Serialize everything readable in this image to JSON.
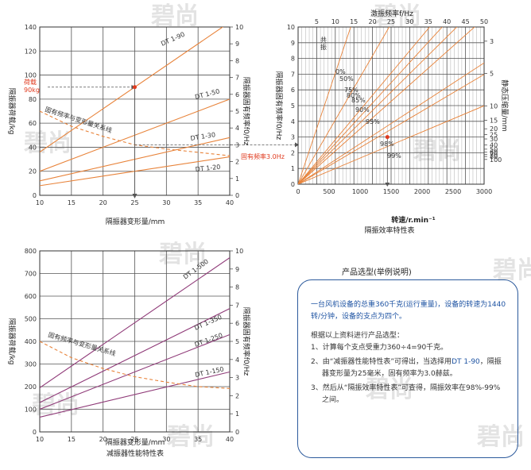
{
  "chart_data": [
    {
      "type": "line",
      "title": "",
      "xlabel": "隔振器变形量/mm",
      "ylabel": "隔振器荷载/kg",
      "y2label": "隔振器固有频率f0/Hz",
      "xlim": [
        10,
        40
      ],
      "ylim": [
        0,
        140
      ],
      "y2lim": [
        0,
        10
      ],
      "x_ticks": [
        "10",
        "15",
        "20",
        "25",
        "30",
        "35",
        "40"
      ],
      "y_ticks": [
        "0",
        "20",
        "40",
        "60",
        "80",
        "100",
        "120",
        "140"
      ],
      "y2_ticks": [
        "0",
        "1",
        "2",
        "3",
        "4",
        "5",
        "6",
        "7",
        "8",
        "9",
        "10"
      ],
      "series": [
        {
          "name": "DT 1-90",
          "x": [
            10,
            40
          ],
          "y": [
            36,
            144
          ]
        },
        {
          "name": "DT 1-50",
          "x": [
            10,
            40
          ],
          "y": [
            20,
            80
          ]
        },
        {
          "name": "DT 1-30",
          "x": [
            10,
            40
          ],
          "y": [
            12,
            48
          ]
        },
        {
          "name": "DT 1-20",
          "x": [
            10,
            40
          ],
          "y": [
            8,
            32
          ]
        }
      ],
      "freq_curve": {
        "name": "固有频率与变形量关系线",
        "x": [
          10,
          15,
          20,
          25,
          30,
          35,
          40
        ],
        "y2": [
          5.0,
          4.1,
          3.5,
          3.0,
          2.75,
          2.55,
          2.35
        ]
      },
      "annotations": {
        "load_label_1": "荷载",
        "load_label_2": "90kg",
        "freq_label": "固有频率3.0Hz"
      }
    },
    {
      "type": "line",
      "title": "",
      "x_top_label": "激振频率f/Hz",
      "xlabel": "转速/r.min⁻¹",
      "caption": "隔振效率特性表",
      "ylabel": "隔振器固有频率f0/Hz",
      "y2label": "静态压缩量/mm",
      "xlim": [
        0,
        3000
      ],
      "ylim": [
        0,
        10
      ],
      "x_ticks": [
        "0",
        "500",
        "1000",
        "1500",
        "2000",
        "2500",
        "3000"
      ],
      "x_top_ticks": [
        "5",
        "10",
        "15",
        "20",
        "25",
        "30",
        "35",
        "40",
        "45",
        "50"
      ],
      "y_ticks": [
        "0",
        "1",
        "2",
        "3",
        "4",
        "5",
        "6",
        "7",
        "8",
        "9",
        "10"
      ],
      "y2_ticks": [
        "3",
        "5",
        "10",
        "15",
        "20",
        "25",
        "30",
        "40",
        "50",
        "60",
        "70",
        "80",
        "100"
      ],
      "resonance_label_1": "共",
      "resonance_label_2": "振",
      "efficiency_lines": [
        {
          "name": "0%",
          "slope": 0.011785
        },
        {
          "name": "50%",
          "slope": 0.006804
        },
        {
          "name": "75%",
          "slope": 0.004714
        },
        {
          "name": "80%",
          "slope": 0.004303
        },
        {
          "name": "85%",
          "slope": 0.003906
        },
        {
          "name": "90%",
          "slope": 0.003514
        },
        {
          "name": "95%",
          "slope": 0.002572
        },
        {
          "name": "98%",
          "slope": 0.002327
        },
        {
          "name": "99%",
          "slope": 0.001663
        }
      ],
      "operating_point": {
        "rpm": 1440,
        "f0": 3.0
      }
    },
    {
      "type": "line",
      "title": "",
      "caption": "减振器性能特性表",
      "xlabel": "隔振器变形量/mm",
      "ylabel": "隔振器荷载/kg",
      "y2label": "隔振器固有频率f0/Hz",
      "xlim": [
        10,
        40
      ],
      "ylim": [
        0,
        800
      ],
      "y2lim": [
        0,
        10
      ],
      "x_ticks": [
        "10",
        "15",
        "20",
        "25",
        "30",
        "35",
        "40"
      ],
      "y_ticks": [
        "0",
        "100",
        "200",
        "300",
        "400",
        "500",
        "600",
        "700",
        "800"
      ],
      "y2_ticks": [
        "0",
        "1",
        "2",
        "3",
        "4",
        "5",
        "6",
        "7",
        "8",
        "9",
        "10"
      ],
      "series": [
        {
          "name": "DT 1-500",
          "x": [
            10,
            40
          ],
          "y": [
            195,
            770
          ]
        },
        {
          "name": "DT 1-350",
          "x": [
            10,
            40
          ],
          "y": [
            130,
            545
          ]
        },
        {
          "name": "DT 1-250",
          "x": [
            10,
            40
          ],
          "y": [
            100,
            430
          ]
        },
        {
          "name": "DT 1-150",
          "x": [
            10,
            40
          ],
          "y": [
            65,
            265
          ]
        }
      ],
      "freq_curve": {
        "name": "固有频率与变形量关系线",
        "x": [
          10,
          15,
          20,
          25,
          30,
          35,
          40
        ],
        "y2": [
          5.0,
          4.1,
          3.5,
          3.05,
          2.75,
          2.5,
          2.4
        ]
      }
    }
  ],
  "info": {
    "title": "产品选型(举例说明)",
    "p1": "一台风机设备的总重360千克(运行重量)，设备的转速为1440转/分钟，设备的支点为四个。",
    "p2": "根据以上资料进行产品选型：",
    "step1": "1、计算每个支点受重力360÷4=90千克。",
    "step2a": "2、由“减振器性能特性表”可得出，当选择用",
    "step2b": "DT 1-90",
    "step2c": "，隔振器变形量为25毫米，固有频率为3.0赫兹。",
    "step3": "3、然后从“隔振效率特性表”可查得，隔振效率在98%-99%之间。"
  },
  "watermark": "碧尚",
  "colors": {
    "line": "#e8833a",
    "purple": "#8f3a78",
    "red": "#e03a1e",
    "grid": "#555555",
    "blue": "#1f54a3"
  }
}
